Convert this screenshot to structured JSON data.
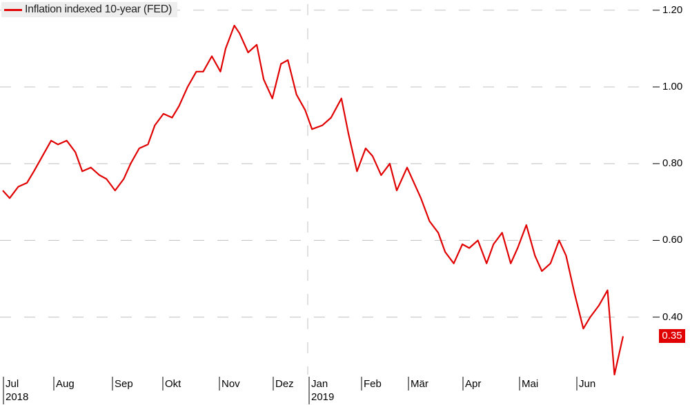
{
  "legend": {
    "label": "Inflation indexed 10-year (FED)"
  },
  "last_value_label": "0.35",
  "colors": {
    "series": "#e00000",
    "grid": "#c0c0c0",
    "axis": "#000000",
    "badge": "#e00000"
  },
  "chart_data": {
    "type": "line",
    "title": "",
    "xlabel": "",
    "ylabel": "",
    "ylim": [
      0.2,
      1.22
    ],
    "y_ticks": [
      "1.20",
      "1.00",
      "0.80",
      "0.60",
      "0.40"
    ],
    "y_tick_values": [
      1.2,
      1.0,
      0.8,
      0.6,
      0.4
    ],
    "x_ticks": [
      "Jul",
      "Aug",
      "Sep",
      "Okt",
      "Nov",
      "Dez",
      "Jan",
      "Feb",
      "Mär",
      "Apr",
      "Mai",
      "Jun"
    ],
    "x_year_labels": [
      "2018",
      "2019"
    ],
    "grid": true,
    "legend_position": "top-left",
    "series": [
      {
        "name": "Inflation indexed 10-year (FED)",
        "x": [
          "2018-07-02",
          "2018-07-06",
          "2018-07-11",
          "2018-07-16",
          "2018-07-20",
          "2018-07-25",
          "2018-07-30",
          "2018-08-03",
          "2018-08-08",
          "2018-08-13",
          "2018-08-17",
          "2018-08-22",
          "2018-08-27",
          "2018-08-31",
          "2018-09-05",
          "2018-09-10",
          "2018-09-14",
          "2018-09-19",
          "2018-09-24",
          "2018-09-28",
          "2018-10-03",
          "2018-10-08",
          "2018-10-12",
          "2018-10-17",
          "2018-10-22",
          "2018-10-26",
          "2018-10-31",
          "2018-11-05",
          "2018-11-08",
          "2018-11-13",
          "2018-11-16",
          "2018-11-21",
          "2018-11-26",
          "2018-11-30",
          "2018-12-05",
          "2018-12-10",
          "2018-12-14",
          "2018-12-19",
          "2018-12-24",
          "2018-12-28",
          "2019-01-03",
          "2019-01-08",
          "2019-01-14",
          "2019-01-18",
          "2019-01-23",
          "2019-01-28",
          "2019-02-01",
          "2019-02-06",
          "2019-02-11",
          "2019-02-15",
          "2019-02-21",
          "2019-02-26",
          "2019-03-01",
          "2019-03-06",
          "2019-03-11",
          "2019-03-15",
          "2019-03-20",
          "2019-03-25",
          "2019-03-29",
          "2019-04-03",
          "2019-04-08",
          "2019-04-12",
          "2019-04-17",
          "2019-04-22",
          "2019-04-26",
          "2019-05-01",
          "2019-05-06",
          "2019-05-10",
          "2019-05-15",
          "2019-05-20",
          "2019-05-24",
          "2019-05-29",
          "2019-06-03",
          "2019-06-07",
          "2019-06-12",
          "2019-06-17",
          "2019-06-21",
          "2019-06-26"
        ],
        "y": [
          0.73,
          0.71,
          0.74,
          0.75,
          0.78,
          0.82,
          0.86,
          0.85,
          0.86,
          0.83,
          0.78,
          0.79,
          0.77,
          0.76,
          0.73,
          0.76,
          0.8,
          0.84,
          0.85,
          0.9,
          0.93,
          0.92,
          0.95,
          1.0,
          1.04,
          1.04,
          1.08,
          1.04,
          1.1,
          1.16,
          1.14,
          1.09,
          1.11,
          1.02,
          0.97,
          1.06,
          1.07,
          0.98,
          0.94,
          0.89,
          0.9,
          0.92,
          0.97,
          0.88,
          0.78,
          0.84,
          0.82,
          0.77,
          0.8,
          0.73,
          0.79,
          0.74,
          0.71,
          0.65,
          0.62,
          0.57,
          0.54,
          0.59,
          0.58,
          0.6,
          0.54,
          0.59,
          0.62,
          0.54,
          0.58,
          0.64,
          0.56,
          0.52,
          0.54,
          0.6,
          0.56,
          0.46,
          0.37,
          0.4,
          0.43,
          0.47,
          0.25,
          0.35
        ]
      }
    ]
  }
}
